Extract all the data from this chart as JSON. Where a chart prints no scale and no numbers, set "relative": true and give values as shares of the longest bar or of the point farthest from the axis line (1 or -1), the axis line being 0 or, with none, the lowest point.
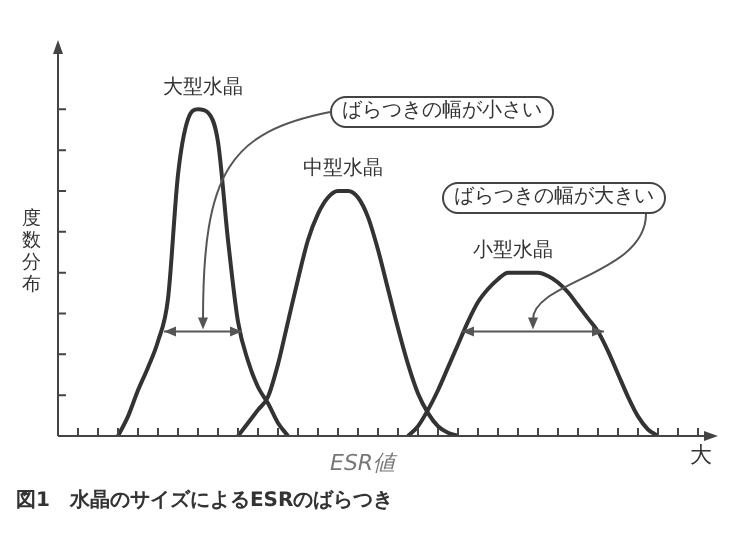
{
  "chart_data": {
    "type": "line",
    "title": "図1　水晶のサイズによるESRのばらつき",
    "xlabel": "ESR値",
    "ylabel": "度数分布",
    "relative": true,
    "legend": false,
    "marker": "none",
    "line_style": "solid",
    "categories": [
      null,
      null,
      null,
      null,
      null,
      null,
      null,
      null,
      null,
      null,
      null,
      null,
      null,
      null,
      null,
      null,
      null,
      null,
      null,
      null,
      null,
      null,
      null,
      null,
      null,
      null,
      null,
      null,
      null,
      null,
      null,
      null,
      null,
      null,
      null,
      null,
      null,
      null,
      null,
      null,
      null,
      null,
      null,
      null,
      null,
      null,
      null,
      null,
      null,
      null,
      null,
      null,
      null,
      null,
      null,
      null,
      null,
      null,
      null,
      null,
      null,
      null,
      null,
      null,
      null
    ],
    "series": [
      {
        "name": "大型水晶",
        "color": "#333333",
        "values": [
          null,
          null,
          null,
          null,
          null,
          null,
          0,
          0.06,
          0.14,
          0.21,
          0.29,
          0.42,
          0.8,
          0.97,
          1.0,
          0.99,
          0.9,
          0.6,
          0.35,
          0.23,
          0.15,
          0.1,
          0.04,
          0,
          null,
          null,
          null,
          null,
          null,
          null,
          null,
          null,
          null,
          null,
          null,
          null,
          null,
          null,
          null,
          null,
          null,
          null,
          null,
          null,
          null,
          null,
          null,
          null,
          null,
          null,
          null,
          null,
          null,
          null,
          null,
          null,
          null,
          null,
          null,
          null,
          null,
          null,
          null,
          null,
          null
        ]
      },
      {
        "name": "中型水晶",
        "color": "#333333",
        "values": [
          null,
          null,
          null,
          null,
          null,
          null,
          null,
          null,
          null,
          null,
          null,
          null,
          null,
          null,
          null,
          null,
          null,
          null,
          0,
          0.04,
          0.08,
          0.12,
          0.22,
          0.35,
          0.48,
          0.6,
          0.68,
          0.73,
          0.75,
          0.75,
          0.73,
          0.67,
          0.57,
          0.45,
          0.33,
          0.22,
          0.13,
          0.07,
          0.03,
          0.01,
          0,
          null,
          null,
          null,
          null,
          null,
          null,
          null,
          null,
          null,
          null,
          null,
          null,
          null,
          null,
          null,
          null,
          null,
          null,
          null,
          null,
          null,
          null,
          null,
          null
        ]
      },
      {
        "name": "小型水晶",
        "color": "#333333",
        "values": [
          null,
          null,
          null,
          null,
          null,
          null,
          null,
          null,
          null,
          null,
          null,
          null,
          null,
          null,
          null,
          null,
          null,
          null,
          null,
          null,
          null,
          null,
          null,
          null,
          null,
          null,
          null,
          null,
          null,
          null,
          null,
          null,
          null,
          null,
          null,
          0,
          0.03,
          0.08,
          0.14,
          0.21,
          0.28,
          0.35,
          0.41,
          0.45,
          0.48,
          0.5,
          0.5,
          0.5,
          0.5,
          0.49,
          0.47,
          0.44,
          0.4,
          0.36,
          0.32,
          0.26,
          0.19,
          0.12,
          0.06,
          0.02,
          0,
          null,
          null,
          null,
          null
        ]
      }
    ],
    "annotations": [
      "ばらつきの幅が小さい",
      "ばらつきの幅が大きい",
      "大"
    ]
  }
}
